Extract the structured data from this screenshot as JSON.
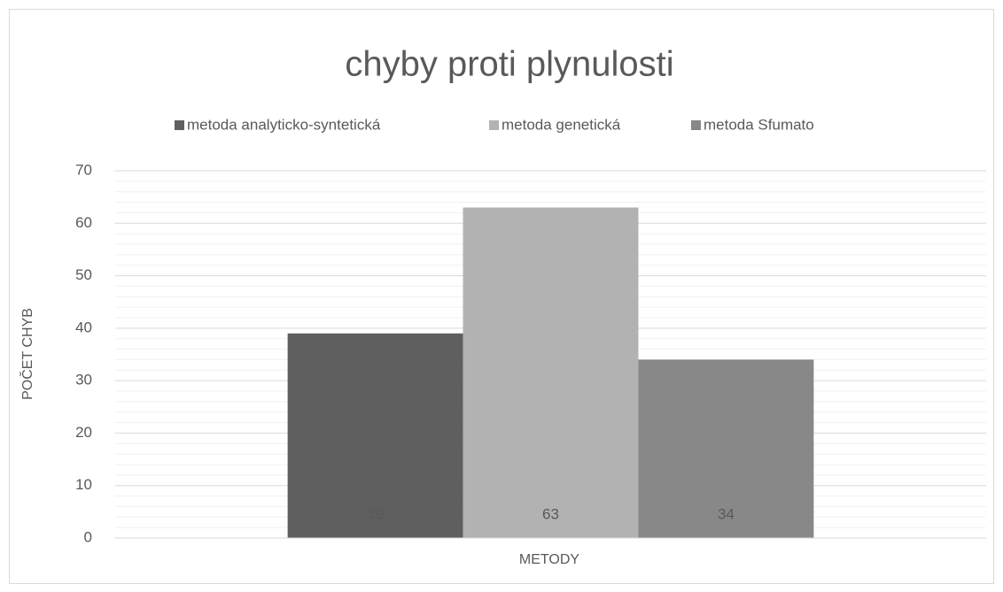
{
  "chart_data": {
    "type": "bar",
    "title": "chyby proti plynulosti",
    "categories": [
      null
    ],
    "series": [
      {
        "name": "metoda analyticko-syntetická",
        "color": "#5f5f5f",
        "values": [
          39
        ]
      },
      {
        "name": "metoda genetická",
        "color": "#b2b2b2",
        "values": [
          63
        ]
      },
      {
        "name": "metoda Sfumato",
        "color": "#888888",
        "values": [
          34
        ]
      }
    ],
    "xlabel": "METODY",
    "ylabel": "POČET CHYB",
    "ylim": [
      0,
      70
    ],
    "yticks": [
      0,
      10,
      20,
      30,
      40,
      50,
      60,
      70
    ],
    "grid": true,
    "minor_grid": true,
    "legend": "top",
    "data_labels": true
  }
}
